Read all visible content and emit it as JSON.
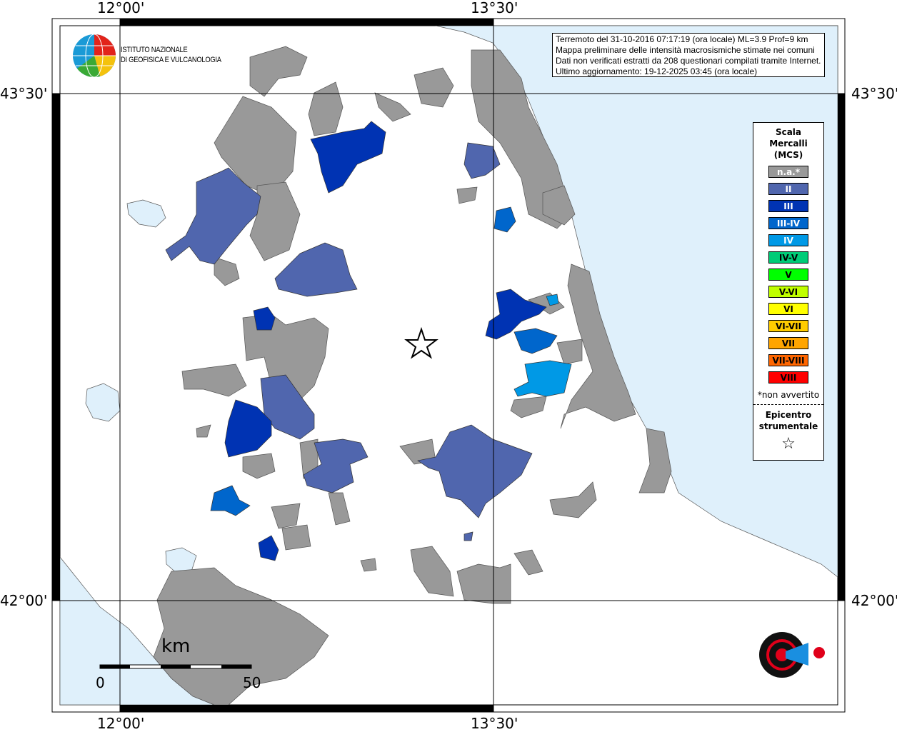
{
  "map": {
    "lon_labels": [
      "12°00'",
      "13°30'"
    ],
    "lat_labels": [
      "43°30'",
      "42°00'"
    ],
    "colors": {
      "sea": "#dff0fb",
      "land": "#ffffff",
      "na": "#999999",
      "II": "#5066ae",
      "III": "#0033b3",
      "III-IV": "#0066cc",
      "IV": "#0099e6"
    }
  },
  "info": {
    "lines": [
      "Terremoto del 31-10-2016 07:17:19 (ora locale) ML=3.9 Prof=9 km",
      "Mappa preliminare delle intensità macrosismiche stimate nei comuni",
      "Dati non verificati estratti da 208 questionari compilati tramite Internet.",
      "Ultimo aggiornamento: 19-12-2025 03:45 (ora locale)"
    ]
  },
  "ingv": {
    "line1": "ISTITUTO NAZIONALE",
    "line2": "DI GEOFISICA E VULCANOLOGIA"
  },
  "legend": {
    "title": [
      "Scala",
      "Mercalli",
      "(MCS)"
    ],
    "items": [
      {
        "label": "n.a.*",
        "color": "#999999",
        "text": "#ffffff"
      },
      {
        "label": "II",
        "color": "#5066ae",
        "text": "#ffffff"
      },
      {
        "label": "III",
        "color": "#0033b3",
        "text": "#ffffff"
      },
      {
        "label": "III-IV",
        "color": "#0066cc",
        "text": "#ffffff"
      },
      {
        "label": "IV",
        "color": "#0099e6",
        "text": "#ffffff"
      },
      {
        "label": "IV-V",
        "color": "#00cc77",
        "text": "#000000"
      },
      {
        "label": "V",
        "color": "#00ff00",
        "text": "#000000"
      },
      {
        "label": "V-VI",
        "color": "#c0ff00",
        "text": "#000000"
      },
      {
        "label": "VI",
        "color": "#ffff00",
        "text": "#000000"
      },
      {
        "label": "VI-VII",
        "color": "#ffcc00",
        "text": "#000000"
      },
      {
        "label": "VII",
        "color": "#ffa500",
        "text": "#000000"
      },
      {
        "label": "VII-VIII",
        "color": "#ff6600",
        "text": "#000000"
      },
      {
        "label": "VIII",
        "color": "#ff0000",
        "text": "#000000"
      }
    ],
    "note": "*non avvertito",
    "epicenter": [
      "Epicentro",
      "strumentale"
    ],
    "star": "☆"
  },
  "scale_bar": {
    "unit": "km",
    "min": "0",
    "max": "50"
  },
  "haisentito_logo": "www.haisentitoilterremoto.it"
}
